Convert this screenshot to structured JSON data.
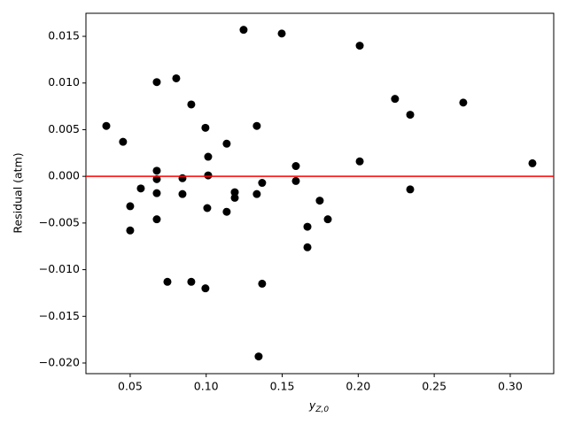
{
  "chart_data": {
    "type": "scatter",
    "ylabel": "Residual (atm)",
    "xlabel": "y",
    "xlabel_subscript": "Z,0",
    "color": "#000000",
    "reference_line": {
      "y": 0,
      "color": "#ff0000"
    },
    "xlim": [
      0.0209,
      0.3286
    ],
    "ylim": [
      -0.02114,
      0.01747
    ],
    "xticks": [
      {
        "value": 0.05,
        "label": "0.05"
      },
      {
        "value": 0.1,
        "label": "0.10"
      },
      {
        "value": 0.15,
        "label": "0.15"
      },
      {
        "value": 0.2,
        "label": "0.20"
      },
      {
        "value": 0.25,
        "label": "0.25"
      },
      {
        "value": 0.3,
        "label": "0.30"
      }
    ],
    "yticks": [
      {
        "value": 0.015,
        "label": "0.015"
      },
      {
        "value": 0.01,
        "label": "0.010"
      },
      {
        "value": 0.005,
        "label": "0.005"
      },
      {
        "value": 0,
        "label": "0.000"
      },
      {
        "value": -0.005,
        "label": "−0.005"
      },
      {
        "value": -0.01,
        "label": "−0.010"
      },
      {
        "value": -0.015,
        "label": "−0.015"
      },
      {
        "value": -0.02,
        "label": "−0.020"
      }
    ],
    "x": [
      0.0343,
      0.0453,
      0.05,
      0.05,
      0.057,
      0.0675,
      0.0675,
      0.0675,
      0.0675,
      0.0675,
      0.0745,
      0.0803,
      0.0844,
      0.0844,
      0.0902,
      0.0902,
      0.0995,
      0.0995,
      0.1013,
      0.1013,
      0.1007,
      0.1135,
      0.1135,
      0.1188,
      0.1188,
      0.1246,
      0.1333,
      0.1333,
      0.1345,
      0.1368,
      0.1368,
      0.1497,
      0.159,
      0.159,
      0.1666,
      0.1666,
      0.1747,
      0.18,
      0.201,
      0.201,
      0.2242,
      0.2342,
      0.2342,
      0.2691,
      0.3146
    ],
    "y": [
      0.0054,
      0.0037,
      -0.0032,
      -0.0058,
      -0.0013,
      0.0101,
      0.0006,
      -0.0003,
      -0.0018,
      -0.0046,
      -0.0113,
      0.0105,
      -0.0002,
      -0.0019,
      0.0077,
      -0.0113,
      0.0052,
      -0.012,
      0.0021,
      0.0001,
      -0.0034,
      0.0035,
      -0.0038,
      -0.0017,
      -0.0023,
      0.0157,
      0.0054,
      -0.0019,
      -0.0193,
      -0.0007,
      -0.0115,
      0.0153,
      0.0011,
      -0.0005,
      -0.0054,
      -0.0076,
      -0.0026,
      -0.0046,
      0.014,
      0.0016,
      0.0083,
      0.0066,
      -0.0014,
      0.0079,
      0.0014
    ]
  }
}
